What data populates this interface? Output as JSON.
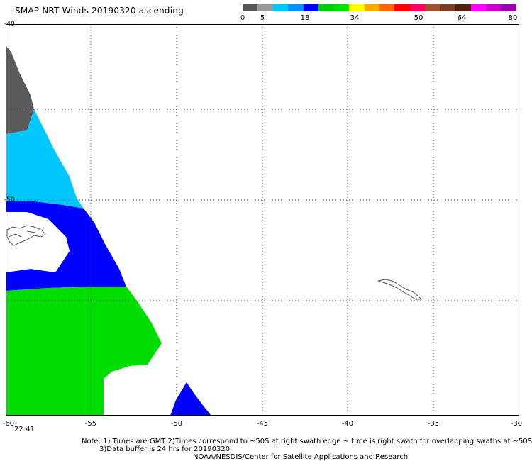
{
  "title": "SMAP NRT Winds 20190320 ascending",
  "colorbar": {
    "ticks": [
      "0",
      "5",
      "18",
      "34",
      "50",
      "64",
      "80"
    ],
    "segments": [
      "#555555",
      "#9a9a9a",
      "#00c8ff",
      "#0090ff",
      "#0000ff",
      "#00cc00",
      "#00e000",
      "#ffff00",
      "#ffaa00",
      "#ff6600",
      "#ff0000",
      "#ff0060",
      "#a05030",
      "#7a3c22",
      "#502010",
      "#ff00ff",
      "#cc00cc",
      "#9900aa"
    ]
  },
  "x_axis": {
    "ticks": [
      "-60",
      "-55",
      "-50",
      "-45",
      "-40",
      "-35",
      "-30"
    ]
  },
  "y_axis": {
    "ticks": [
      "-40",
      "-50"
    ]
  },
  "time_label": "22:41",
  "notes": {
    "line1": "Note: 1) Times are GMT 2)Times correspond to ~50S at right swath edge ~ time is right swath for overlapping swaths at ~50S",
    "line2": "3)Data buffer is 24 hrs for 20190320",
    "line3": "NOAA/NESDIS/Center for Satellite Applications and Research"
  },
  "colors": {
    "calm": "#5a5a5a",
    "light": "#00c8ff",
    "moderate": "#0000ff",
    "strong": "#00dd00",
    "coast": "#555555"
  }
}
